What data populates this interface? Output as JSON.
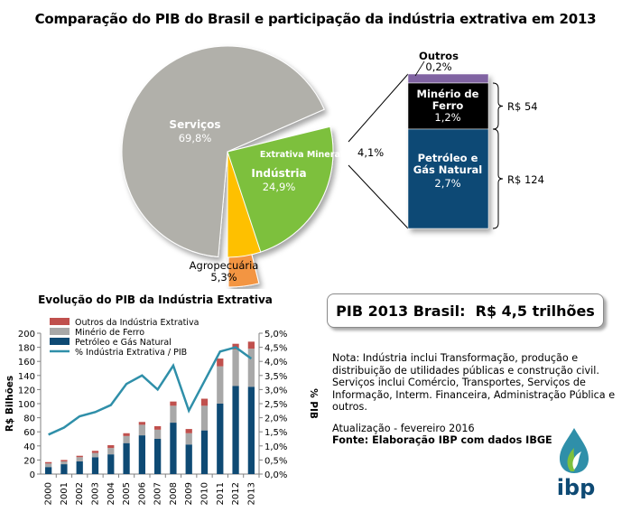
{
  "title": "Comparação do PIB do Brasil e participação  da indústria  extrativa em 2013",
  "pie": {
    "slices": [
      {
        "label": "Serviços",
        "value_label": "69,8%",
        "value": 69.8,
        "color": "#b1b0aa"
      },
      {
        "label": "Indústria",
        "value_label": "24,9%",
        "value": 24.9,
        "color": "#7dc03d"
      },
      {
        "label": "Extrativa Mineral",
        "value_label": "4,1%",
        "value": 4.1,
        "color": "#f39542"
      },
      {
        "label": "Agropecuária",
        "value_label": "5,3%",
        "value": 5.3,
        "color": "#fec000"
      }
    ]
  },
  "stack": {
    "segments": [
      {
        "label": "Outros",
        "value_label": "0,2%",
        "value": 0.2,
        "color": "#8064a2"
      },
      {
        "label": "Minério de Ferro",
        "value_label": "1,2%",
        "value": 1.2,
        "color": "#000000"
      },
      {
        "label": "Petróleo e Gás Natural",
        "value_label": "2,7%",
        "value": 2.7,
        "color": "#0e4a74"
      }
    ],
    "brackets": [
      {
        "label": "R$ 54"
      },
      {
        "label": "R$ 124"
      }
    ]
  },
  "chart_data": {
    "type": "bar",
    "title": "Evolução do PIB da Indústria Extrativa",
    "categories": [
      "2000",
      "2001",
      "2002",
      "2003",
      "2004",
      "2005",
      "2006",
      "2007",
      "2008",
      "2009",
      "2010",
      "2011",
      "2012",
      "2013"
    ],
    "series": [
      {
        "name": "Petróleo e Gás Natural",
        "color": "#0e4a74",
        "values": [
          10,
          14,
          18,
          24,
          28,
          44,
          55,
          50,
          73,
          42,
          62,
          100,
          125,
          124
        ]
      },
      {
        "name": "Minério de Ferro",
        "color": "#a8a8a8",
        "values": [
          5,
          4,
          6,
          6,
          9,
          10,
          15,
          13,
          24,
          16,
          35,
          53,
          52,
          54
        ]
      },
      {
        "name": "Outros da Indústria Extrativa",
        "color": "#c0504d",
        "values": [
          2,
          2,
          2,
          3,
          4,
          4,
          4,
          5,
          6,
          6,
          10,
          11,
          8,
          10
        ]
      },
      {
        "name": "% Indústria Extrativa / PIB",
        "color": "#2f8fa9",
        "type": "line",
        "axis": "right",
        "values": [
          1.4,
          1.65,
          2.05,
          2.2,
          2.45,
          3.2,
          3.5,
          3.0,
          3.85,
          2.25,
          3.3,
          4.35,
          4.5,
          4.1
        ]
      }
    ],
    "ylabel": "R$ Bilhões",
    "ylim": [
      0,
      200
    ],
    "yticks": [
      "0",
      "20",
      "40",
      "60",
      "80",
      "100",
      "120",
      "140",
      "160",
      "180",
      "200"
    ],
    "y2label": "% PIB",
    "y2lim": [
      0,
      5
    ],
    "y2ticks": [
      "0,0%",
      "0,5%",
      "1,0%",
      "1,5%",
      "2,0%",
      "2,5%",
      "3,0%",
      "3,5%",
      "4,0%",
      "4,5%",
      "5,0%"
    ],
    "legend_order": [
      "Outros da Indústria Extrativa",
      "Minério de Ferro",
      "Petróleo e Gás Natural",
      "% Indústria Extrativa / PIB"
    ]
  },
  "summary": {
    "label": "PIB 2013 Brasil:",
    "value": "R$ 4,5 trilhões"
  },
  "notes": {
    "text": "Nota: Indústria inclui Transformação,  produção e distribuição de utilidades públicas e construção civil. Serviços inclui Comércio, Transportes, Serviços de Informação, Interm. Financeira, Administração Pública e outros.",
    "update": "Atualização - fevereiro 2016",
    "source": "Fonte: Elaboração IBP com dados IBGE"
  },
  "logo": {
    "text": "ibp",
    "drop_color": "#2f8fa9",
    "leaf_color": "#7dc03d"
  }
}
